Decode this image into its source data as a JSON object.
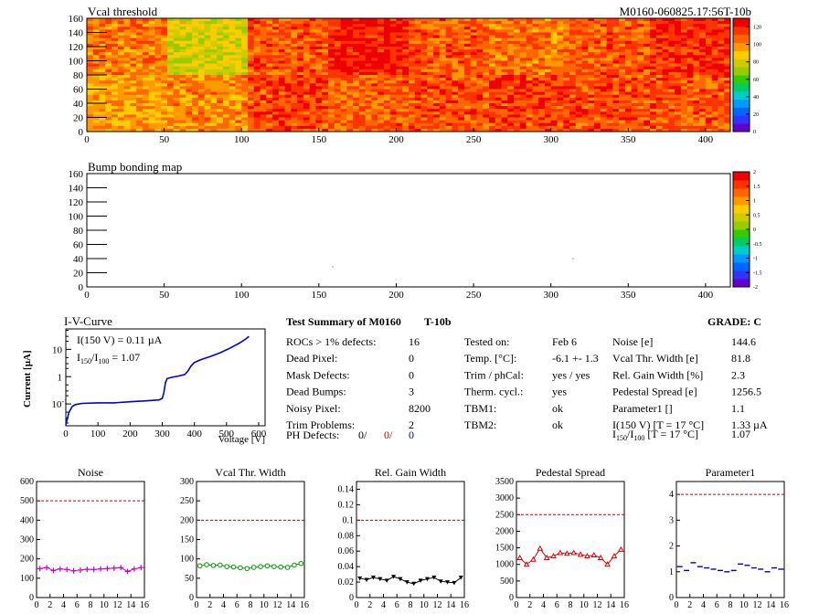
{
  "header": {
    "left_title": "Vcal threshold",
    "right_title": "M0160-060825.17:56T-10b"
  },
  "vcal_map": {
    "title": "Vcal threshold",
    "x_ticks": [
      "0",
      "50",
      "100",
      "150",
      "200",
      "250",
      "300",
      "350",
      "400"
    ],
    "y_ticks": [
      "0",
      "20",
      "40",
      "60",
      "80",
      "100",
      "120",
      "140",
      "160"
    ],
    "xlim": [
      0,
      416
    ],
    "ylim": [
      0,
      160
    ],
    "colorbar_ticks": [
      "0",
      "20",
      "40",
      "60",
      "80",
      "100",
      "120"
    ],
    "colorbar_range": [
      0,
      130
    ],
    "roc_means_top": [
      104,
      80,
      110,
      122,
      110,
      104,
      110,
      118
    ],
    "roc_means_bottom": [
      96,
      100,
      114,
      108,
      112,
      114,
      112,
      110
    ]
  },
  "bump_map": {
    "title": "Bump bonding map",
    "x_ticks": [
      "0",
      "50",
      "100",
      "150",
      "200",
      "250",
      "300",
      "350",
      "400"
    ],
    "y_ticks": [
      "0",
      "20",
      "40",
      "60",
      "80",
      "100",
      "120",
      "140",
      "160"
    ],
    "colorbar_ticks": [
      "2",
      "1.5",
      "1",
      "0.5",
      "0",
      "-0.5",
      "-1",
      "-1.5",
      "-2"
    ],
    "colorbar_range": [
      -2,
      2
    ]
  },
  "iv_curve": {
    "title": "I-V-Curve",
    "xlabel": "Voltage [V]",
    "ylabel": "Current [µA]",
    "i150_label": "I(150 V) = 0.11 µA",
    "ratio_prefix": "I",
    "ratio_sub1": "150",
    "ratio_mid": "/I",
    "ratio_sub2": "100",
    "ratio_value": " =  1.07",
    "x_ticks": [
      "0",
      "100",
      "200",
      "300",
      "400",
      "500",
      "600"
    ],
    "y_ticks": [
      "10",
      "1",
      "10"
    ],
    "y_tick_exp": "-1",
    "xlim": [
      0,
      620
    ],
    "ylim_log": [
      -1.8,
      1.75
    ],
    "points": [
      [
        0,
        0.017
      ],
      [
        5,
        0.03
      ],
      [
        10,
        0.05
      ],
      [
        20,
        0.08
      ],
      [
        30,
        0.095
      ],
      [
        50,
        0.105
      ],
      [
        100,
        0.11
      ],
      [
        150,
        0.11
      ],
      [
        200,
        0.12
      ],
      [
        250,
        0.13
      ],
      [
        290,
        0.14
      ],
      [
        300,
        0.16
      ],
      [
        305,
        0.25
      ],
      [
        310,
        0.6
      ],
      [
        315,
        0.85
      ],
      [
        330,
        0.95
      ],
      [
        350,
        1.05
      ],
      [
        370,
        1.2
      ],
      [
        380,
        1.6
      ],
      [
        390,
        2.5
      ],
      [
        400,
        3.3
      ],
      [
        420,
        4.2
      ],
      [
        450,
        5.5
      ],
      [
        480,
        7.5
      ],
      [
        510,
        11
      ],
      [
        540,
        17
      ],
      [
        560,
        24
      ],
      [
        570,
        30
      ]
    ]
  },
  "summary": {
    "title": "Test Summary of M0160",
    "subtitle": "T-10b",
    "grade": "GRADE:  C",
    "col1": [
      {
        "label": "ROCs > 1% defects:",
        "value": "16"
      },
      {
        "label": "Dead Pixel:",
        "value": "0"
      },
      {
        "label": "Mask Defects:",
        "value": "0"
      },
      {
        "label": "Dead Bumps:",
        "value": "3"
      },
      {
        "label": "Noisy Pixel:",
        "value": "8200"
      },
      {
        "label": "Trim Problems:",
        "value": "2"
      }
    ],
    "ph_defects_label": "PH Defects:",
    "ph_defects_values": [
      "0/",
      "0/",
      "0"
    ],
    "col2": [
      {
        "label": "Tested on:",
        "value": "Feb 6"
      },
      {
        "label": "Temp. [°C]:",
        "value": "-6.1 +- 1.3"
      },
      {
        "label": "Trim / phCal:",
        "value": "yes / yes"
      },
      {
        "label": "Therm. cycl.:",
        "value": "yes"
      },
      {
        "label": "TBM1:",
        "value": "ok"
      },
      {
        "label": "TBM2:",
        "value": "ok"
      }
    ],
    "col3": [
      {
        "label": "Noise [e]",
        "value": "144.6"
      },
      {
        "label": "Vcal Thr. Width [e]",
        "value": "81.8"
      },
      {
        "label": "Rel. Gain Width [%]",
        "value": "2.3"
      },
      {
        "label": "Pedestal Spread [e]",
        "value": "1256.5"
      },
      {
        "label": "Parameter1 []",
        "value": "1.1"
      },
      {
        "label": "I(150 V) [T = 17 °C]",
        "value": "1.33 µA"
      }
    ],
    "last_row_label_prefix": "I",
    "last_row_sub1": "150",
    "last_row_mid": "/I",
    "last_row_sub2": "100",
    "last_row_suffix": "  [T = 17 °C]",
    "last_row_value": "1.07"
  },
  "chart_data": [
    {
      "type": "line",
      "title": "Noise",
      "x": [
        0,
        1,
        2,
        3,
        4,
        5,
        6,
        7,
        8,
        9,
        10,
        11,
        12,
        13,
        14,
        15
      ],
      "values": [
        150,
        155,
        140,
        148,
        145,
        138,
        142,
        146,
        145,
        148,
        150,
        152,
        155,
        135,
        148,
        155
      ],
      "ylim": [
        0,
        600
      ],
      "y_ticks": [
        "0",
        "100",
        "200",
        "300",
        "400",
        "500",
        "600"
      ],
      "limit": 500,
      "color": "#cc00cc",
      "marker": "cross"
    },
    {
      "type": "line",
      "title": "Vcal Thr. Width",
      "x": [
        0,
        1,
        2,
        3,
        4,
        5,
        6,
        7,
        8,
        9,
        10,
        11,
        12,
        13,
        14,
        15
      ],
      "values": [
        82,
        85,
        83,
        84,
        80,
        79,
        77,
        75,
        78,
        80,
        82,
        80,
        79,
        78,
        84,
        88
      ],
      "ylim": [
        0,
        300
      ],
      "y_ticks": [
        "0",
        "50",
        "100",
        "150",
        "200",
        "250",
        "300"
      ],
      "limit": 200,
      "color": "#009900",
      "marker": "circle"
    },
    {
      "type": "line",
      "title": "Rel. Gain Width",
      "x": [
        0,
        1,
        2,
        3,
        4,
        5,
        6,
        7,
        8,
        9,
        10,
        11,
        12,
        13,
        14,
        15
      ],
      "values": [
        0.025,
        0.023,
        0.026,
        0.024,
        0.022,
        0.027,
        0.024,
        0.02,
        0.018,
        0.022,
        0.024,
        0.026,
        0.021,
        0.02,
        0.019,
        0.026
      ],
      "ylim": [
        0,
        0.15
      ],
      "y_ticks": [
        "0",
        "0.02",
        "0.04",
        "0.06",
        "0.08",
        "0.1",
        "0.12",
        "0.14"
      ],
      "limit": 0.1,
      "color": "#000000",
      "marker": "triangle-down"
    },
    {
      "type": "line",
      "title": "Pedestal Spread",
      "x": [
        0,
        1,
        2,
        3,
        4,
        5,
        6,
        7,
        8,
        9,
        10,
        11,
        12,
        13,
        14,
        15
      ],
      "values": [
        1200,
        1000,
        1150,
        1480,
        1200,
        1250,
        1350,
        1330,
        1350,
        1300,
        1250,
        1280,
        1200,
        1000,
        1250,
        1450
      ],
      "ylim": [
        0,
        3500
      ],
      "y_ticks": [
        "0",
        "500",
        "1000",
        "1500",
        "2000",
        "2500",
        "3000",
        "3500"
      ],
      "limit": 2500,
      "color": "#dd0000",
      "marker": "triangle-up"
    },
    {
      "type": "line",
      "title": "Parameter1",
      "x": [
        0,
        1,
        2,
        3,
        4,
        5,
        6,
        7,
        8,
        9,
        10,
        11,
        12,
        13,
        14,
        15
      ],
      "values": [
        1.2,
        1.05,
        1.35,
        1.2,
        1.15,
        1.1,
        1.05,
        1.0,
        1.05,
        1.3,
        1.25,
        1.15,
        1.1,
        1.0,
        1.15,
        1.1
      ],
      "ylim": [
        0,
        4.5
      ],
      "y_ticks": [
        "0",
        "1",
        "2",
        "3",
        "4"
      ],
      "limit": 4,
      "color": "#0000cc",
      "marker": "hbar"
    }
  ],
  "small_x_ticks": [
    "0",
    "2",
    "4",
    "6",
    "8",
    "10",
    "12",
    "14",
    "16"
  ],
  "colors": {
    "limit": "#cc0000",
    "iv_line": "#0000dd",
    "ph_red": "#dd0000",
    "ph_blue": "#0000cc"
  }
}
